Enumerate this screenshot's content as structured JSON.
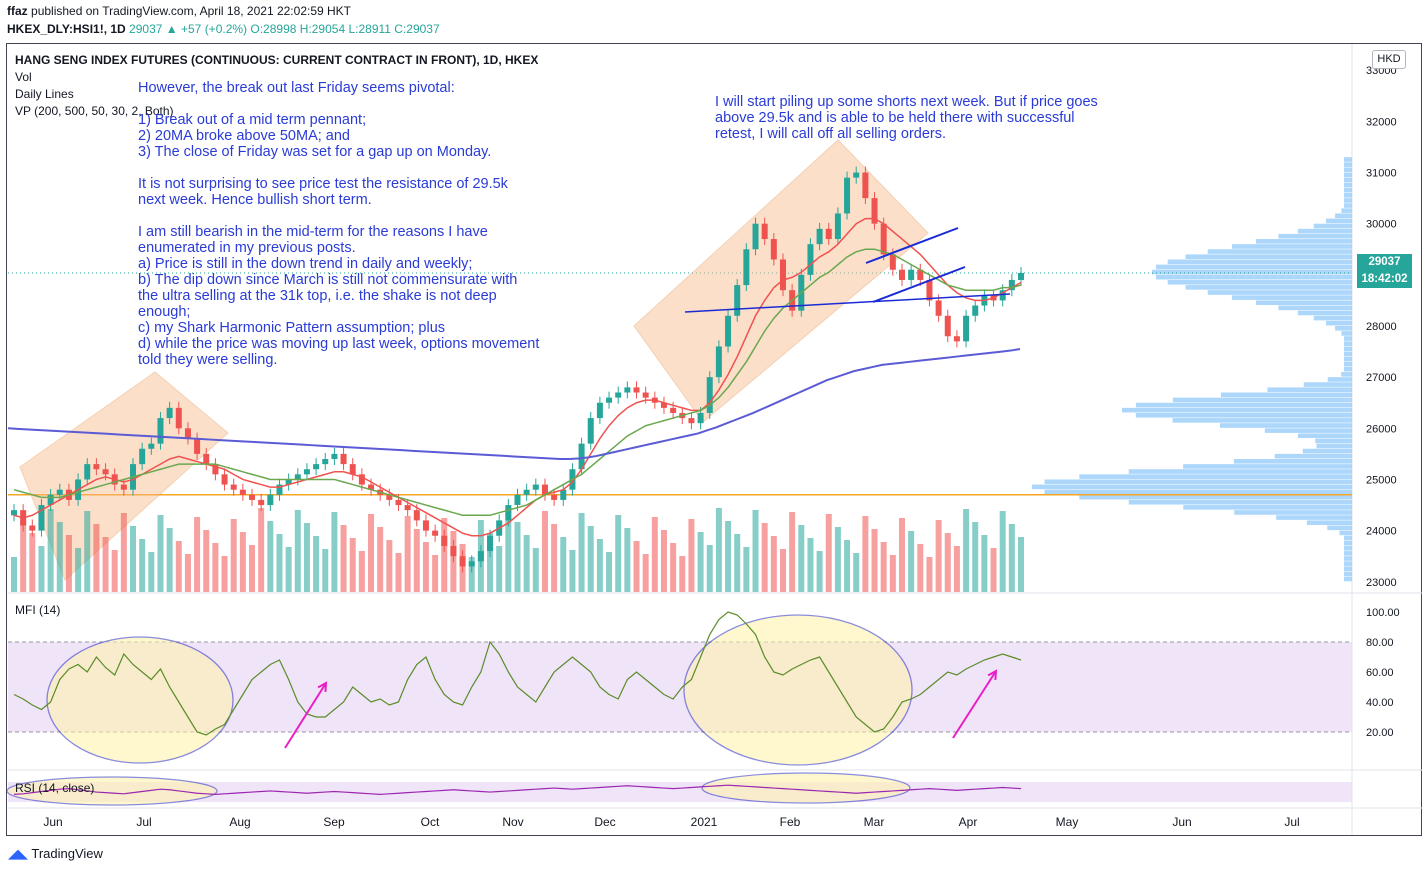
{
  "header": {
    "publisher": "ffaz",
    "published_text": "published on TradingView.com, April 18, 2021 22:02:59 HKT",
    "symbol": "HKEX_DLY:HSI1!, 1D",
    "last": "29037",
    "change": "+57 (+0.2%)",
    "ohlc": "O:28998 H:29054 L:28911 C:29037"
  },
  "legend": {
    "title": "HANG SENG INDEX FUTURES (CONTINUOUS: CURRENT CONTRACT IN FRONT), 1D, HKEX",
    "vol": "Vol",
    "daily_lines": "Daily Lines",
    "vp": "VP (200, 500, 50, 30, 2, Both)",
    "mfi": "MFI (14)",
    "rsi": "RSI (14, close)"
  },
  "annotations": {
    "left": "However, the break out last Friday seems pivotal:\n\n1) Break out of a mid term pennant;\n2) 20MA broke above 50MA; and\n3) The close of Friday was set for a gap up on Monday.\n\nIt is not surprising to see price test the resistance of 29.5k\nnext week. Hence bullish short term.\n\nI am still bearish in the mid-term for the reasons I have\nenumerated in my previous posts.\na) Price is still in the down trend in daily and weekly;\nb) The dip down since March is still not commensurate with\nthe ultra selling at the 31k top, i.e. the shake is not deep\nenough;\nc) my Shark Harmonic Pattern assumption; plus\nd) while the price was moving up last week, options movement\ntold they were selling.",
    "right": "I will start piling up some shorts next week. But if price goes\nabove 29.5k and is able to be held there with successful\nretest, I will call off all selling orders."
  },
  "price_axis": {
    "currency": "HKD",
    "last_price": "29037",
    "countdown": "18:42:02"
  },
  "footer": {
    "brand": "TradingView"
  },
  "colors": {
    "up": "#26a69a",
    "down": "#ef5350",
    "ma20": "#f0524f",
    "ma50": "#6aa84f",
    "ma200": "#5b5bd6",
    "annotation": "#2a3bd6",
    "vp": "#90caf9",
    "hline": "#f5a623",
    "mfi": "#5b8c2a",
    "rsi": "#9c27b0",
    "arrow": "#e91ec8"
  },
  "chart_data": {
    "type": "line",
    "title": "HANG SENG INDEX FUTURES (CONTINUOUS: CURRENT CONTRACT IN FRONT), 1D, HKEX",
    "x_tick_labels": [
      "Jun",
      "Jul",
      "Aug",
      "Sep",
      "Oct",
      "Nov",
      "Dec",
      "2021",
      "Feb",
      "Mar",
      "Apr",
      "May",
      "Jun",
      "Jul"
    ],
    "price_ticks": [
      "33000",
      "32000",
      "31000",
      "30000",
      "29000",
      "28000",
      "27000",
      "26000",
      "25000",
      "24000",
      "23000"
    ],
    "mfi_ticks": [
      "100.00",
      "80.00",
      "60.00",
      "40.00",
      "20.00"
    ],
    "ylim": [
      22800,
      33200
    ],
    "horizontal_level": 24700,
    "series": [
      {
        "name": "Close",
        "values": [
          24400,
          24100,
          24000,
          24500,
          24700,
          24800,
          24600,
          25000,
          25300,
          25200,
          25100,
          24900,
          24800,
          25300,
          25600,
          25700,
          26200,
          26400,
          26000,
          25800,
          25500,
          25300,
          25100,
          24900,
          24800,
          24700,
          24600,
          24500,
          24700,
          24900,
          25000,
          25100,
          25200,
          25300,
          25400,
          25500,
          25300,
          25100,
          24900,
          24800,
          24700,
          24600,
          24500,
          24400,
          24200,
          24000,
          23900,
          23700,
          23500,
          23300,
          23400,
          23600,
          23900,
          24200,
          24500,
          24700,
          24800,
          24900,
          24700,
          24600,
          24800,
          25200,
          25700,
          26200,
          26500,
          26600,
          26700,
          26800,
          26700,
          26600,
          26500,
          26400,
          26300,
          26200,
          26100,
          26300,
          27000,
          27600,
          28200,
          28800,
          29500,
          30000,
          29700,
          29300,
          28700,
          28300,
          29000,
          29600,
          29900,
          29700,
          30200,
          30900,
          31000,
          30500,
          30000,
          29400,
          29100,
          28900,
          29100,
          28900,
          28500,
          28200,
          27800,
          27700,
          28200,
          28400,
          28600,
          28500,
          28700,
          28900,
          29037
        ]
      },
      {
        "name": "MA20",
        "values": [
          24300,
          24250,
          24300,
          24400,
          24500,
          24600,
          24700,
          24800,
          24900,
          25000,
          25050,
          25000,
          24950,
          25000,
          25100,
          25200,
          25300,
          25400,
          25450,
          25400,
          25350,
          25300,
          25250,
          25200,
          25100,
          25000,
          24950,
          24900,
          24850,
          24850,
          24900,
          24950,
          25000,
          25050,
          25100,
          25150,
          25150,
          25100,
          25050,
          24950,
          24850,
          24750,
          24650,
          24550,
          24450,
          24350,
          24250,
          24150,
          24050,
          23950,
          23900,
          23900,
          23950,
          24050,
          24150,
          24300,
          24450,
          24600,
          24700,
          24750,
          24800,
          24950,
          25200,
          25500,
          25800,
          26050,
          26250,
          26400,
          26500,
          26550,
          26550,
          26500,
          26450,
          26400,
          26350,
          26350,
          26500,
          26750,
          27050,
          27400,
          27800,
          28200,
          28500,
          28750,
          28900,
          28950,
          29050,
          29200,
          29350,
          29450,
          29600,
          29800,
          30000,
          30100,
          30100,
          30000,
          29850,
          29700,
          29550,
          29400,
          29200,
          29000,
          28800,
          28650,
          28550,
          28500,
          28500,
          28550,
          28650,
          28750,
          28850
        ]
      },
      {
        "name": "MA50",
        "values": [
          24800,
          24750,
          24700,
          24650,
          24650,
          24650,
          24700,
          24750,
          24800,
          24850,
          24900,
          24950,
          25000,
          25050,
          25100,
          25150,
          25200,
          25250,
          25300,
          25300,
          25300,
          25300,
          25300,
          25250,
          25200,
          25150,
          25100,
          25050,
          25000,
          25000,
          25000,
          25000,
          25000,
          25000,
          25000,
          25000,
          24950,
          24900,
          24850,
          24800,
          24750,
          24700,
          24650,
          24600,
          24550,
          24500,
          24450,
          24400,
          24350,
          24300,
          24300,
          24300,
          24300,
          24350,
          24400,
          24450,
          24500,
          24600,
          24700,
          24800,
          24900,
          25000,
          25100,
          25250,
          25400,
          25550,
          25700,
          25850,
          25950,
          26050,
          26100,
          26150,
          26200,
          26250,
          26300,
          26350,
          26450,
          26600,
          26800,
          27050,
          27300,
          27600,
          27900,
          28150,
          28350,
          28500,
          28650,
          28800,
          28950,
          29050,
          29200,
          29350,
          29450,
          29500,
          29500,
          29450,
          29400,
          29300,
          29200,
          29100,
          29000,
          28900,
          28800,
          28750,
          28700,
          28700,
          28700,
          28700,
          28750,
          28750,
          28800
        ]
      },
      {
        "name": "MA200",
        "values": [
          26000,
          25990,
          25980,
          25970,
          25960,
          25950,
          25940,
          25930,
          25920,
          25910,
          25900,
          25890,
          25880,
          25870,
          25860,
          25850,
          25840,
          25830,
          25820,
          25810,
          25800,
          25790,
          25780,
          25770,
          25760,
          25750,
          25740,
          25730,
          25720,
          25710,
          25700,
          25690,
          25680,
          25670,
          25660,
          25650,
          25640,
          25630,
          25620,
          25610,
          25600,
          25590,
          25580,
          25570,
          25560,
          25550,
          25540,
          25530,
          25520,
          25510,
          25500,
          25490,
          25480,
          25470,
          25460,
          25450,
          25440,
          25430,
          25420,
          25410,
          25400,
          25400,
          25410,
          25430,
          25460,
          25500,
          25540,
          25580,
          25620,
          25660,
          25700,
          25740,
          25780,
          25820,
          25860,
          25900,
          25960,
          26020,
          26090,
          26160,
          26230,
          26300,
          26380,
          26460,
          26540,
          26620,
          26700,
          26780,
          26860,
          26940,
          27000,
          27060,
          27120,
          27160,
          27200,
          27240,
          27260,
          27280,
          27300,
          27320,
          27340,
          27360,
          27380,
          27400,
          27420,
          27440,
          27460,
          27480,
          27500,
          27520,
          27550
        ]
      },
      {
        "name": "MFI (14)",
        "values": [
          45,
          42,
          38,
          35,
          40,
          55,
          62,
          65,
          60,
          70,
          63,
          58,
          72,
          65,
          60,
          55,
          62,
          50,
          40,
          30,
          20,
          18,
          22,
          25,
          35,
          45,
          55,
          60,
          65,
          68,
          55,
          40,
          32,
          30,
          30,
          35,
          40,
          50,
          45,
          40,
          42,
          38,
          40,
          55,
          65,
          70,
          55,
          45,
          40,
          38,
          50,
          60,
          80,
          72,
          60,
          50,
          45,
          40,
          50,
          60,
          65,
          70,
          65,
          60,
          50,
          45,
          42,
          55,
          60,
          55,
          50,
          45,
          42,
          50,
          55,
          70,
          85,
          95,
          100,
          98,
          92,
          85,
          70,
          60,
          58,
          62,
          65,
          68,
          70,
          60,
          50,
          40,
          30,
          25,
          20,
          22,
          30,
          40,
          42,
          45,
          50,
          55,
          60,
          58,
          62,
          65,
          68,
          70,
          72,
          70,
          68
        ]
      },
      {
        "name": "RSI (14, close)",
        "values": [
          45,
          46,
          48,
          50,
          52,
          54,
          55,
          53,
          51,
          49,
          48,
          47,
          46,
          48,
          50,
          52,
          54,
          53,
          51,
          49,
          47,
          46,
          45,
          46,
          47,
          48,
          49,
          50,
          51,
          50,
          49,
          48,
          47,
          48,
          49,
          50,
          49,
          48,
          47,
          46,
          45,
          46,
          47,
          48,
          49,
          50,
          51,
          52,
          53,
          52,
          51,
          50,
          49,
          50,
          51,
          52,
          53,
          54,
          55,
          56,
          55,
          54,
          55,
          56,
          57,
          58,
          59,
          60,
          59,
          58,
          57,
          56,
          55,
          56,
          57,
          58,
          59,
          60,
          61,
          60,
          59,
          58,
          57,
          56,
          55,
          54,
          53,
          52,
          51,
          50,
          49,
          48,
          47,
          48,
          49,
          50,
          51,
          52,
          53,
          54,
          55,
          54,
          53,
          52,
          53,
          54,
          55,
          56,
          57,
          56,
          55
        ]
      }
    ]
  }
}
